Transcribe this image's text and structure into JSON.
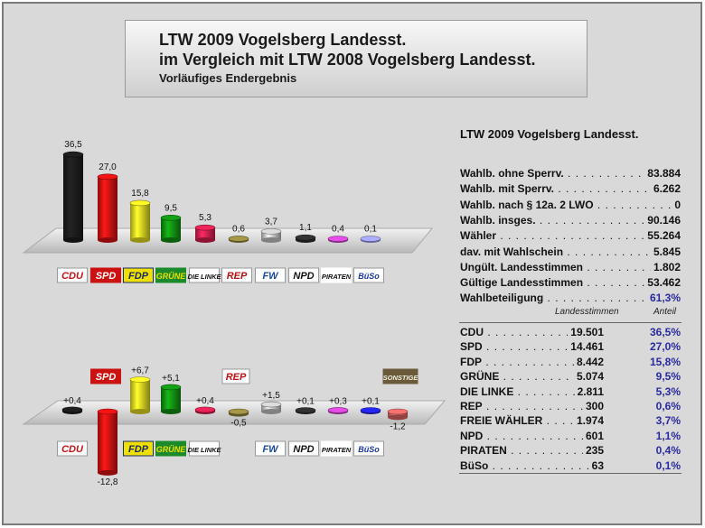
{
  "header": {
    "title_line1": "LTW 2009 Vogelsberg Landesst.",
    "title_line2": "im Vergleich mit LTW 2008 Vogelsberg Landesst.",
    "title_line3": "Vorläufiges Endergebnis"
  },
  "chart_data": [
    {
      "type": "bar",
      "categories": [
        "CDU",
        "SPD",
        "FDP",
        "GRÜNE",
        "DIE LINKE",
        "REP",
        "FREIE WÄHLER",
        "NPD",
        "PIRATEN",
        "BüSo"
      ],
      "values": [
        36.5,
        27.0,
        15.8,
        9.5,
        5.3,
        0.6,
        3.7,
        1.1,
        0.4,
        0.1
      ],
      "value_labels": [
        "36,5",
        "27,0",
        "15,8",
        "9,5",
        "5,3",
        "0,6",
        "3,7",
        "1,1",
        "0,4",
        "0,1"
      ],
      "colors": [
        "#1a1a1a",
        "#cc1111",
        "#d8d020",
        "#118811",
        "#c81e4a",
        "#8a7f3a",
        "#b8b8b8",
        "#2a2a2a",
        "#c040c0",
        "#9090e0"
      ],
      "logos": [
        "CDU",
        "SPD",
        "FDP",
        "GRÜNE",
        "DIE LINKE",
        "REP",
        "FW",
        "NPD",
        "PIRATEN",
        "BüSo"
      ]
    },
    {
      "type": "bar",
      "categories": [
        "CDU",
        "SPD",
        "FDP",
        "GRÜNE",
        "DIE LINKE",
        "REP",
        "FREIE WÄHLER",
        "NPD",
        "PIRATEN",
        "BüSo",
        "SONSTIGE"
      ],
      "values": [
        0.4,
        -12.8,
        6.7,
        5.1,
        0.4,
        -0.5,
        1.5,
        0.1,
        0.3,
        0.1,
        -1.2
      ],
      "value_labels": [
        "+0,4",
        "-12,8",
        "+6,7",
        "+5,1",
        "+0,4",
        "-0,5",
        "+1,5",
        "+0,1",
        "+0,3",
        "+0,1",
        "-1,2"
      ],
      "colors": [
        "#1a1a1a",
        "#cc1111",
        "#d8d020",
        "#118811",
        "#c81e4a",
        "#8a7f3a",
        "#b8b8b8",
        "#2a2a2a",
        "#c040c0",
        "#2020d0",
        "#d06060"
      ],
      "logos": [
        "CDU",
        "SPD",
        "FDP",
        "GRÜNE",
        "DIE LINKE",
        "REP",
        "FW",
        "NPD",
        "PIRATEN",
        "BüSo",
        "SONSTIGE"
      ]
    }
  ],
  "sidebar": {
    "title": "LTW 2009 Vogelsberg Landesst.",
    "stats": [
      {
        "label": "Wahlb. ohne Sperrv.",
        "value": "83.884"
      },
      {
        "label": "Wahlb. mit Sperrv.",
        "value": "6.262"
      },
      {
        "label": "Wahlb. nach § 12a. 2 LWO",
        "value": "0"
      },
      {
        "label": "Wahlb. insges.",
        "value": "90.146"
      },
      {
        "label": "Wähler",
        "value": "55.264"
      },
      {
        "label": "dav. mit Wahlschein",
        "value": "5.845"
      },
      {
        "label": "Ungült. Landesstimmen",
        "value": "1.802"
      },
      {
        "label": "Gültige Landesstimmen",
        "value": "53.462"
      },
      {
        "label": "Wahlbeteiligung",
        "value": "61,3%"
      }
    ],
    "col_votes": "Landesstimmen",
    "col_share": "Anteil",
    "results": [
      {
        "party": "CDU",
        "votes": "19.501",
        "share": "36,5%"
      },
      {
        "party": "SPD",
        "votes": "14.461",
        "share": "27,0%"
      },
      {
        "party": "FDP",
        "votes": "8.442",
        "share": "15,8%"
      },
      {
        "party": "GRÜNE",
        "votes": "5.074",
        "share": "9,5%"
      },
      {
        "party": "DIE LINKE",
        "votes": "2.811",
        "share": "5,3%"
      },
      {
        "party": "REP",
        "votes": "300",
        "share": "0,6%"
      },
      {
        "party": "FREIE WÄHLER",
        "votes": "1.974",
        "share": "3,7%"
      },
      {
        "party": "NPD",
        "votes": "601",
        "share": "1,1%"
      },
      {
        "party": "PIRATEN",
        "votes": "235",
        "share": "0,4%"
      },
      {
        "party": "BüSo",
        "votes": "63",
        "share": "0,1%"
      }
    ]
  }
}
